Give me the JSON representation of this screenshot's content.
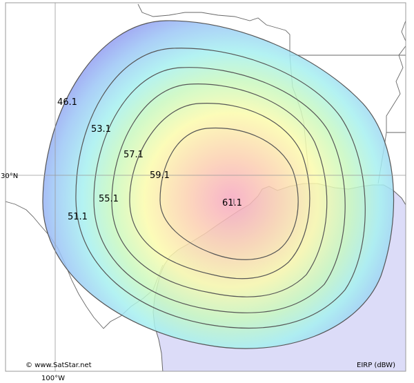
{
  "map": {
    "gridlines": {
      "latitude_label": "30°N",
      "longitude_label": "100°W"
    },
    "contours": [
      {
        "label": "46.1"
      },
      {
        "label": "51.1"
      },
      {
        "label": "53.1"
      },
      {
        "label": "55.1"
      },
      {
        "label": "57.1"
      },
      {
        "label": "59.1"
      },
      {
        "label": "61.1"
      }
    ],
    "footer": {
      "copyright": "© www.SatStar.net",
      "legend_unit": "EIRP (dBW)"
    },
    "colors": {
      "sea": "#dcdcf8",
      "land": "#ffffff",
      "border": "#666666",
      "contour": "#555555",
      "frame": "#999999"
    }
  }
}
